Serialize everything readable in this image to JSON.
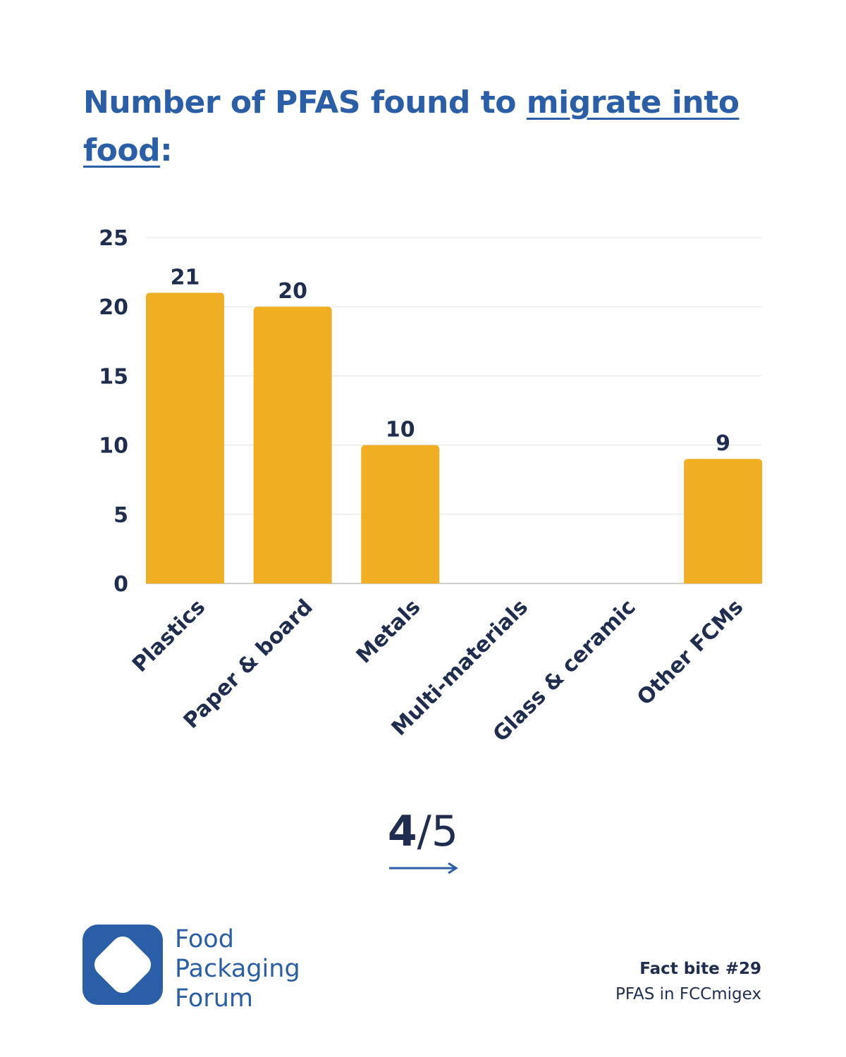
{
  "title": {
    "part1": "Number of PFAS found to ",
    "part2": "migrate into food",
    "part3": ":"
  },
  "chart_data": {
    "type": "bar",
    "categories": [
      "Plastics",
      "Paper & board",
      "Metals",
      "Multi-materials",
      "Glass & ceramic",
      "Other FCMs"
    ],
    "values": [
      21,
      20,
      10,
      0,
      0,
      9
    ],
    "data_labels": [
      "21",
      "20",
      "10",
      "",
      "",
      "9"
    ],
    "yticks": [
      0,
      5,
      10,
      15,
      20,
      25
    ],
    "ylim": [
      0,
      25
    ],
    "grid": true,
    "bar_color": "#f0ae23",
    "text_color": "#1f2d4e",
    "grid_color": "#e3e3e3"
  },
  "pager": {
    "current": "4",
    "separator": "/",
    "total": "5"
  },
  "logo": {
    "line1": "Food",
    "line2": "Packaging",
    "line3": "Forum",
    "color": "#2a5fa8"
  },
  "footer": {
    "fact_bite": "Fact bite #29",
    "subtitle": "PFAS in FCCmigex"
  }
}
